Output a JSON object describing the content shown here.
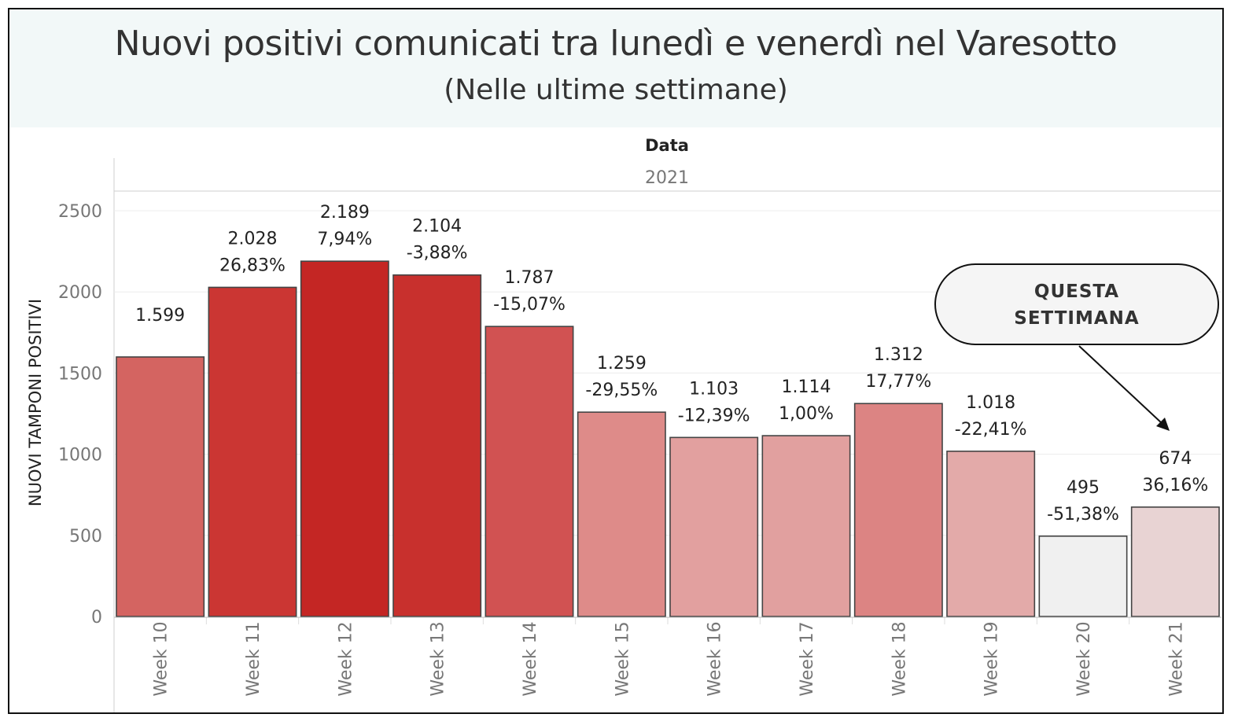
{
  "header": {
    "title": "Nuovi positivi comunicati tra lunedì e venerdì nel Varesotto",
    "subtitle": "(Nelle ultime settimane)"
  },
  "chart_data": {
    "type": "bar",
    "title": "Nuovi positivi comunicati tra lunedì e venerdì nel Varesotto",
    "subtitle": "(Nelle ultime settimane)",
    "column_header": "Data",
    "year_label": "2021",
    "ylabel": "NUOVI TAMPONI POSITIVI",
    "xlabel": "",
    "ylim": [
      0,
      2620
    ],
    "yticks": [
      "0",
      "500",
      "1000",
      "1500",
      "2000",
      "2500"
    ],
    "ytick_values": [
      0,
      500,
      1000,
      1500,
      2000,
      2500
    ],
    "grid": true,
    "categories": [
      "Week 10",
      "Week 11",
      "Week 12",
      "Week 13",
      "Week 14",
      "Week 15",
      "Week 16",
      "Week 17",
      "Week 18",
      "Week 19",
      "Week 20",
      "Week 21"
    ],
    "values": [
      1599,
      2028,
      2189,
      2104,
      1787,
      1259,
      1103,
      1114,
      1312,
      1018,
      495,
      674
    ],
    "value_labels": [
      "1.599",
      "2.028",
      "2.189",
      "2.104",
      "1.787",
      "1.259",
      "1.103",
      "1.114",
      "1.312",
      "1.018",
      "495",
      "674"
    ],
    "change_labels": [
      "",
      "26,83%",
      "7,94%",
      "-3,88%",
      "-15,07%",
      "-29,55%",
      "-12,39%",
      "1,00%",
      "17,77%",
      "-22,41%",
      "-51,38%",
      "36,16%"
    ],
    "bar_colors": [
      "#d46461",
      "#cb3633",
      "#c42624",
      "#c8302d",
      "#d15252",
      "#de8b89",
      "#e2a09f",
      "#e1a09f",
      "#dc8483",
      "#e3aaa9",
      "#f0f0f0",
      "#e8d3d3"
    ],
    "annotation": {
      "lines": [
        "QUESTA",
        "SETTIMANA"
      ],
      "points_to": "Week 21"
    }
  }
}
